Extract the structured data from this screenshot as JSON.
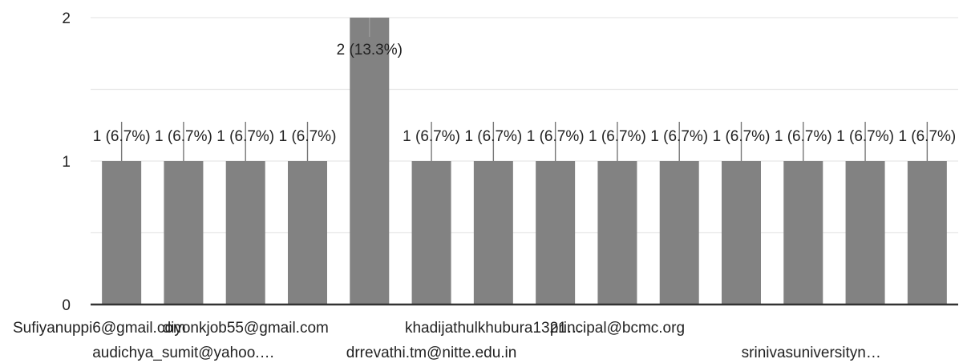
{
  "chart_data": {
    "type": "bar",
    "categories": [
      "Sufiyanuppi6@gmail.com",
      "audichya_sumit@yahoo.…",
      "diyonkjob55@gmail.com",
      "",
      "",
      "drrevathi.tm@nitte.edu.in",
      "khadijathulkhubura1321…",
      "",
      "principal@bcmc.org",
      "",
      "",
      "srinivasuniversityn…",
      "",
      ""
    ],
    "values": [
      1,
      1,
      1,
      1,
      2,
      1,
      1,
      1,
      1,
      1,
      1,
      1,
      1,
      1
    ],
    "data_labels": [
      "1 (6.7%)",
      "1 (6.7%)",
      "1 (6.7%)",
      "1 (6.7%)",
      "2 (13.3%)",
      "1 (6.7%)",
      "1 (6.7%)",
      "1 (6.7%)",
      "1 (6.7%)",
      "1 (6.7%)",
      "1 (6.7%)",
      "1 (6.7%)",
      "1 (6.7%)",
      "1 (6.7%)"
    ],
    "ylim": [
      0,
      2
    ],
    "yticks": [
      "0",
      "1",
      "2"
    ],
    "grid": true,
    "bar_color": "#828282",
    "axis_color": "#333333",
    "grid_color": "#e6e6e6"
  }
}
